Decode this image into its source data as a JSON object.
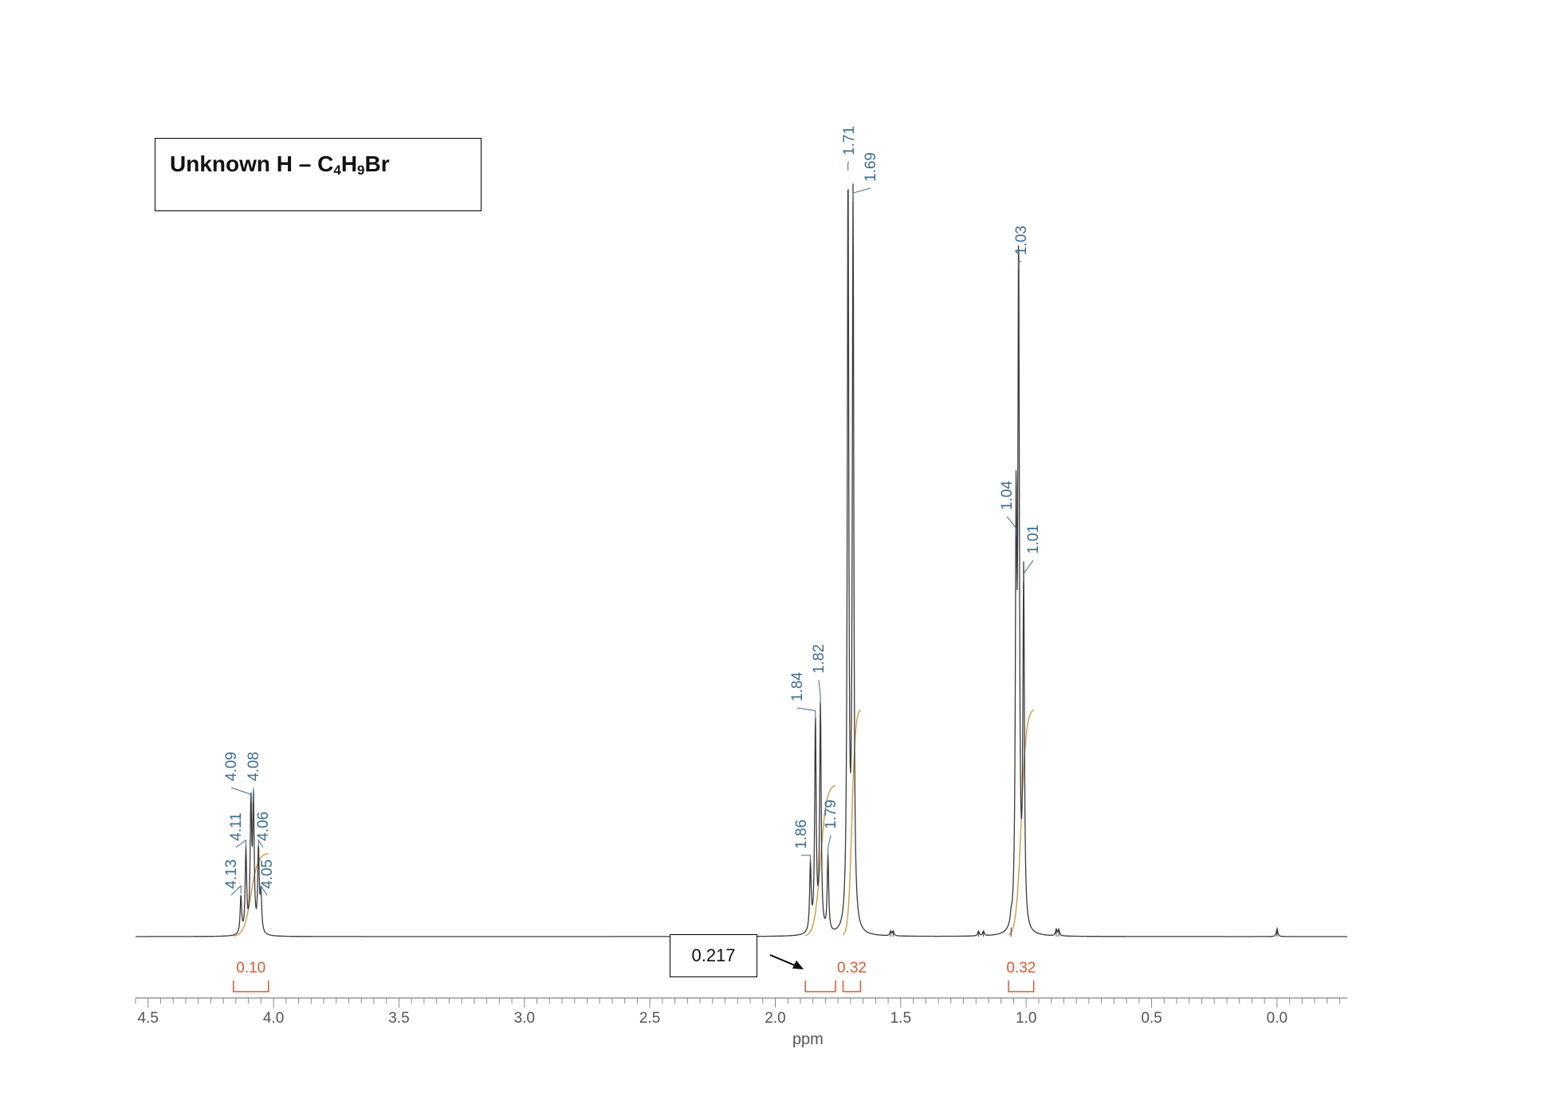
{
  "title": {
    "prefix": "Unknown H – C",
    "sub1": "4",
    "mid": "H",
    "sub2": "9",
    "suffix": "Br"
  },
  "callout": {
    "value": "0.217"
  },
  "chart_data": {
    "type": "line",
    "xlabel": "ppm",
    "x_reversed": true,
    "xlim": [
      4.55,
      -0.28
    ],
    "x_ticks": [
      4.5,
      4.0,
      3.5,
      3.0,
      2.5,
      2.0,
      1.5,
      1.0,
      0.5,
      0.0
    ],
    "x_tick_labels": [
      "4.5",
      "4.0",
      "3.5",
      "3.0",
      "2.5",
      "2.0",
      "1.5",
      "1.0",
      "0.5",
      "0.0"
    ],
    "colors": {
      "spectrum": "#3a3a3a",
      "peak_labels": "#3a6e93",
      "integrals": "#e2582f",
      "integral_curve": "#d79a3a"
    },
    "peaks": [
      {
        "ppm": 4.13,
        "height": 0.05,
        "label": "4.13"
      },
      {
        "ppm": 4.11,
        "height": 0.11,
        "label": "4.11"
      },
      {
        "ppm": 4.09,
        "height": 0.17,
        "label": "4.09"
      },
      {
        "ppm": 4.08,
        "height": 0.17,
        "label": "4.08"
      },
      {
        "ppm": 4.06,
        "height": 0.11,
        "label": "4.06"
      },
      {
        "ppm": 4.05,
        "height": 0.05,
        "label": "4.05"
      },
      {
        "ppm": 1.86,
        "height": 0.09,
        "label": "1.86"
      },
      {
        "ppm": 1.84,
        "height": 0.28,
        "label": "1.84"
      },
      {
        "ppm": 1.82,
        "height": 0.3,
        "label": "1.82"
      },
      {
        "ppm": 1.79,
        "height": 0.1,
        "label": "1.79"
      },
      {
        "ppm": 1.71,
        "height": 1.0,
        "label": "1.71"
      },
      {
        "ppm": 1.69,
        "height": 0.96,
        "label": "1.69"
      },
      {
        "ppm": 1.04,
        "height": 0.52,
        "label": "1.04"
      },
      {
        "ppm": 1.03,
        "height": 0.87,
        "label": "1.03"
      },
      {
        "ppm": 1.01,
        "height": 0.46,
        "label": "1.01"
      }
    ],
    "integrals": [
      {
        "from": 4.16,
        "to": 4.02,
        "value": "0.10",
        "show_label": true
      },
      {
        "from": 1.88,
        "to": 1.76,
        "value": "",
        "show_label": false
      },
      {
        "from": 1.73,
        "to": 1.66,
        "value": "0.32",
        "show_label": true
      },
      {
        "from": 1.07,
        "to": 0.97,
        "value": "0.32",
        "show_label": true
      }
    ],
    "small_peaks": [
      {
        "ppm": 1.54,
        "height": 0.006
      },
      {
        "ppm": 1.53,
        "height": 0.006
      },
      {
        "ppm": 1.19,
        "height": 0.006
      },
      {
        "ppm": 1.17,
        "height": 0.006
      },
      {
        "ppm": 1.06,
        "height": 0.01
      },
      {
        "ppm": 0.88,
        "height": 0.008
      },
      {
        "ppm": 0.87,
        "height": 0.008
      },
      {
        "ppm": 0.0,
        "height": 0.01
      }
    ]
  }
}
